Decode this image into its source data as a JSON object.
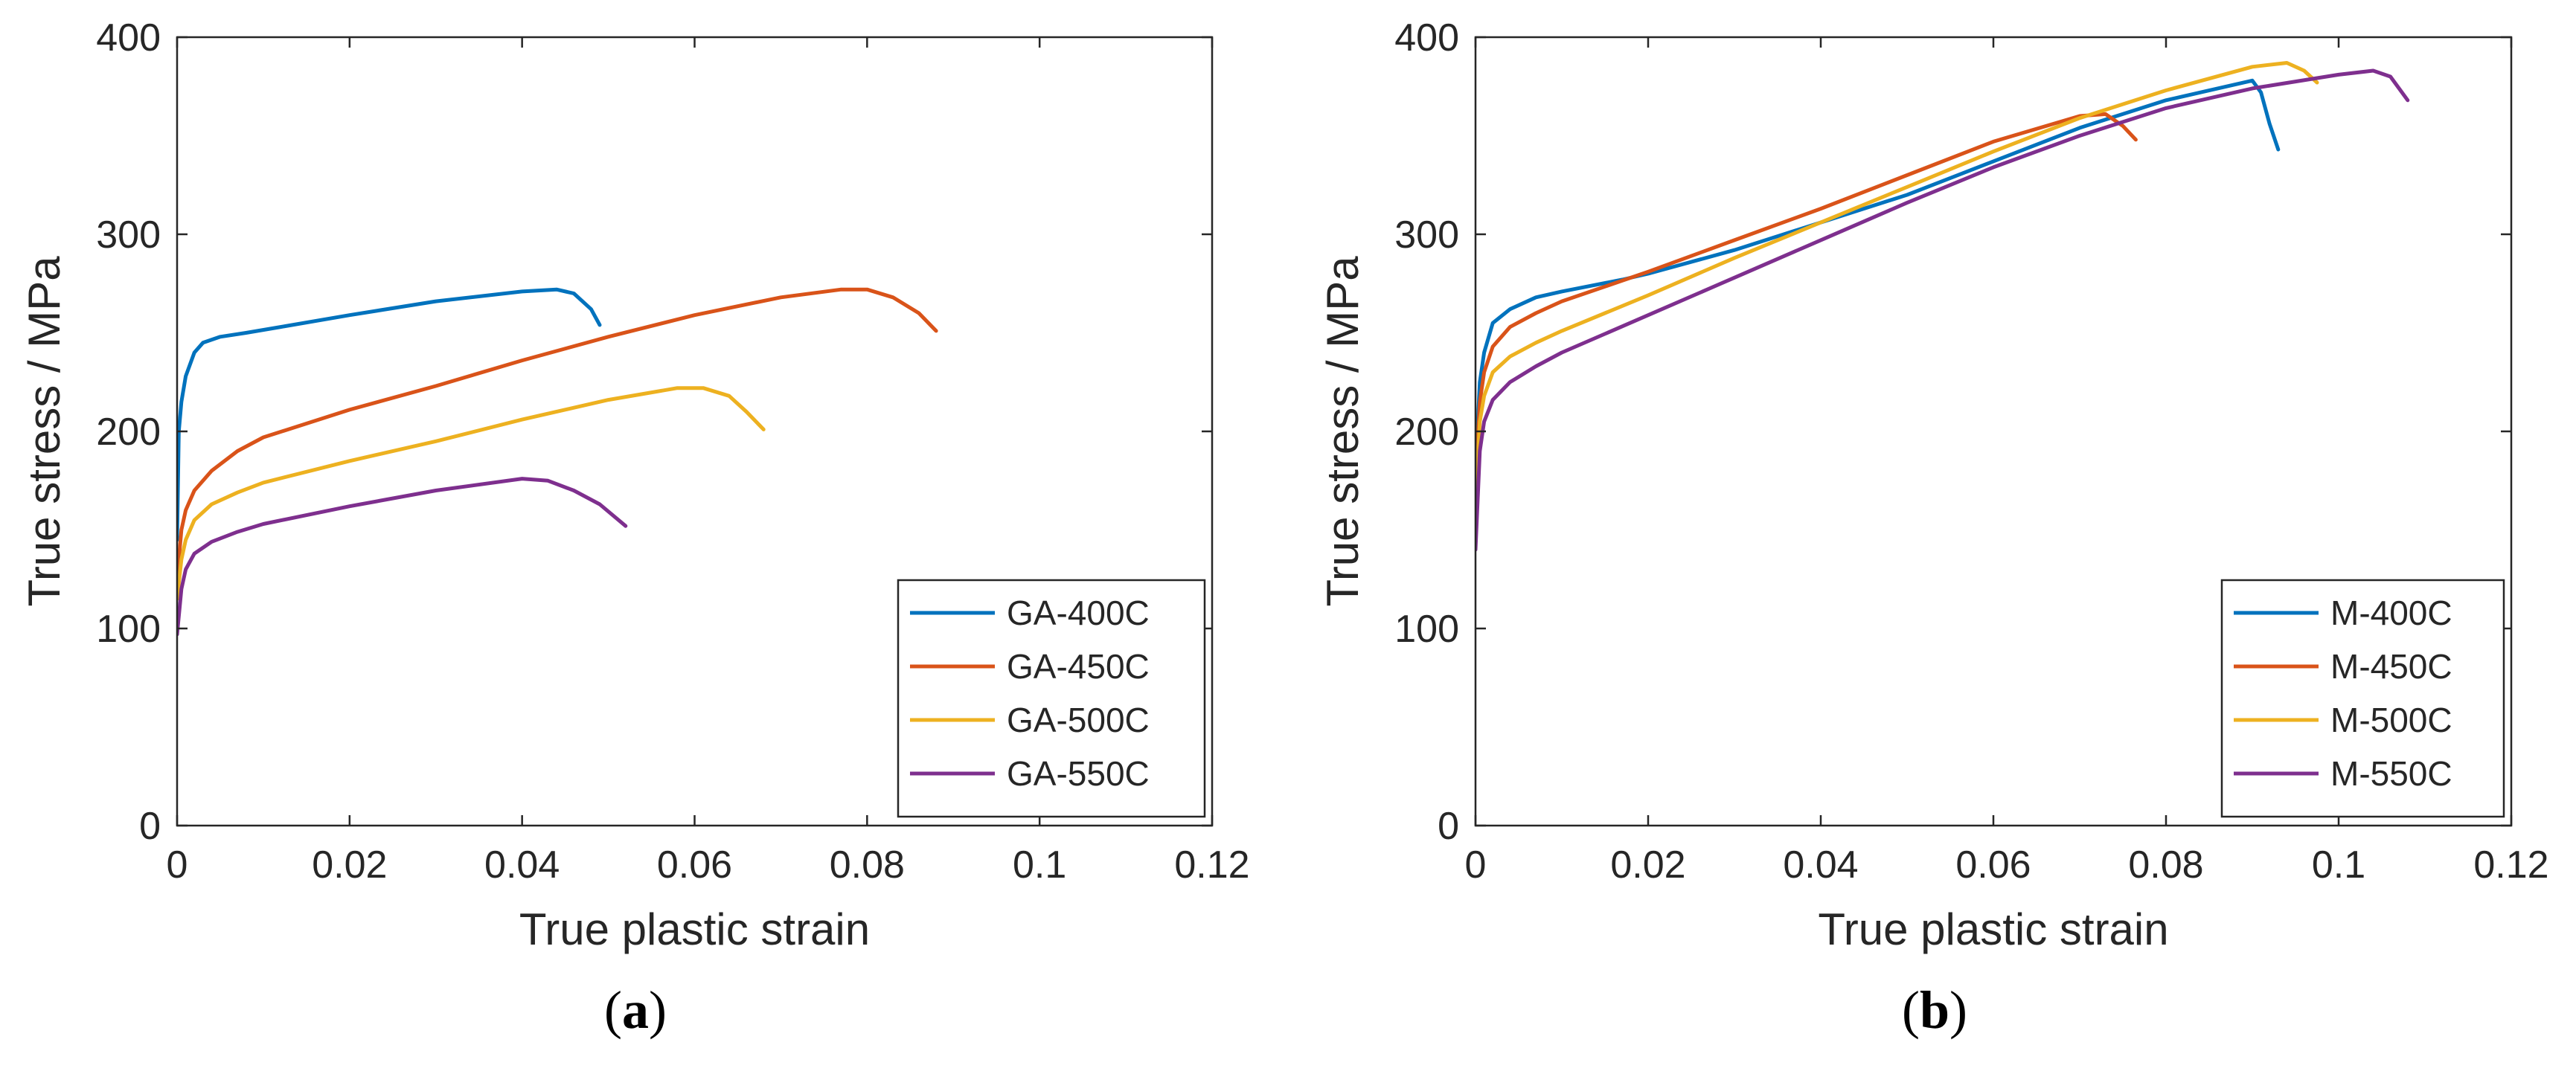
{
  "colors": {
    "blue": "#0072BD",
    "orange": "#D95319",
    "yellow": "#EDB120",
    "purple": "#7E2F8E",
    "axis": "#262626"
  },
  "chart_data": [
    {
      "type": "line",
      "panel_label_open": "(",
      "panel_label_letter": "a",
      "panel_label_close": ")",
      "xlabel": "True plastic strain",
      "ylabel": "True stress / MPa",
      "xlim": [
        0,
        0.12
      ],
      "ylim": [
        0,
        400
      ],
      "xticks": [
        0,
        0.02,
        0.04,
        0.06,
        0.08,
        0.1,
        0.12
      ],
      "xtick_labels": [
        "0",
        "0.02",
        "0.04",
        "0.06",
        "0.08",
        "0.1",
        "0.12"
      ],
      "yticks": [
        0,
        100,
        200,
        300,
        400
      ],
      "ytick_labels": [
        "0",
        "100",
        "200",
        "300",
        "400"
      ],
      "grid": false,
      "legend_position": "bottom-right",
      "series": [
        {
          "name": "GA-400C",
          "color": "#0072BD",
          "x": [
            0,
            0.0002,
            0.0005,
            0.001,
            0.002,
            0.003,
            0.005,
            0.008,
            0.012,
            0.02,
            0.03,
            0.04,
            0.044,
            0.046,
            0.048,
            0.049
          ],
          "y": [
            145,
            200,
            215,
            228,
            240,
            245,
            248,
            250,
            253,
            259,
            266,
            271,
            272,
            270,
            262,
            254
          ]
        },
        {
          "name": "GA-450C",
          "color": "#D95319",
          "x": [
            0,
            0.0005,
            0.001,
            0.002,
            0.004,
            0.007,
            0.01,
            0.02,
            0.03,
            0.04,
            0.05,
            0.06,
            0.07,
            0.077,
            0.08,
            0.083,
            0.086,
            0.088
          ],
          "y": [
            125,
            150,
            160,
            170,
            180,
            190,
            197,
            211,
            223,
            236,
            248,
            259,
            268,
            272,
            272,
            268,
            260,
            251
          ]
        },
        {
          "name": "GA-500C",
          "color": "#EDB120",
          "x": [
            0,
            0.0005,
            0.001,
            0.002,
            0.004,
            0.007,
            0.01,
            0.02,
            0.03,
            0.04,
            0.05,
            0.058,
            0.061,
            0.064,
            0.066,
            0.068
          ],
          "y": [
            115,
            135,
            145,
            155,
            163,
            169,
            174,
            185,
            195,
            206,
            216,
            222,
            222,
            218,
            210,
            201
          ]
        },
        {
          "name": "GA-550C",
          "color": "#7E2F8E",
          "x": [
            0,
            0.0005,
            0.001,
            0.002,
            0.004,
            0.007,
            0.01,
            0.02,
            0.03,
            0.04,
            0.043,
            0.046,
            0.049,
            0.052
          ],
          "y": [
            97,
            120,
            130,
            138,
            144,
            149,
            153,
            162,
            170,
            176,
            175,
            170,
            163,
            152
          ]
        }
      ]
    },
    {
      "type": "line",
      "panel_label_open": "(",
      "panel_label_letter": "b",
      "panel_label_close": ")",
      "xlabel": "True plastic strain",
      "ylabel": "True stress / MPa",
      "xlim": [
        0,
        0.12
      ],
      "ylim": [
        0,
        400
      ],
      "xticks": [
        0,
        0.02,
        0.04,
        0.06,
        0.08,
        0.1,
        0.12
      ],
      "xtick_labels": [
        "0",
        "0.02",
        "0.04",
        "0.06",
        "0.08",
        "0.1",
        "0.12"
      ],
      "yticks": [
        0,
        100,
        200,
        300,
        400
      ],
      "ytick_labels": [
        "0",
        "100",
        "200",
        "300",
        "400"
      ],
      "grid": false,
      "legend_position": "bottom-right",
      "series": [
        {
          "name": "M-400C",
          "color": "#0072BD",
          "x": [
            0,
            0.0005,
            0.001,
            0.002,
            0.004,
            0.007,
            0.01,
            0.017,
            0.02,
            0.03,
            0.04,
            0.05,
            0.06,
            0.07,
            0.08,
            0.09,
            0.091,
            0.092,
            0.093
          ],
          "y": [
            180,
            225,
            240,
            255,
            262,
            268,
            271,
            277,
            280,
            292,
            306,
            320,
            337,
            354,
            368,
            378,
            372,
            356,
            343
          ]
        },
        {
          "name": "M-450C",
          "color": "#D95319",
          "x": [
            0,
            0.0005,
            0.001,
            0.002,
            0.004,
            0.007,
            0.01,
            0.02,
            0.03,
            0.04,
            0.05,
            0.06,
            0.07,
            0.073,
            0.075,
            0.0765
          ],
          "y": [
            175,
            215,
            230,
            243,
            253,
            260,
            266,
            281,
            297,
            313,
            330,
            347,
            360,
            361,
            355,
            348
          ]
        },
        {
          "name": "M-500C",
          "color": "#EDB120",
          "x": [
            0,
            0.0005,
            0.001,
            0.002,
            0.004,
            0.007,
            0.01,
            0.02,
            0.03,
            0.04,
            0.05,
            0.06,
            0.07,
            0.08,
            0.09,
            0.094,
            0.096,
            0.0975
          ],
          "y": [
            165,
            205,
            218,
            230,
            238,
            245,
            251,
            269,
            288,
            306,
            324,
            342,
            359,
            373,
            385,
            387,
            383,
            377
          ]
        },
        {
          "name": "M-550C",
          "color": "#7E2F8E",
          "x": [
            0,
            0.0005,
            0.001,
            0.002,
            0.004,
            0.007,
            0.01,
            0.02,
            0.03,
            0.04,
            0.05,
            0.06,
            0.07,
            0.08,
            0.09,
            0.1,
            0.104,
            0.106,
            0.108
          ],
          "y": [
            140,
            190,
            205,
            216,
            225,
            233,
            240,
            259,
            278,
            297,
            316,
            334,
            350,
            364,
            374,
            381,
            383,
            380,
            368
          ]
        }
      ]
    }
  ]
}
